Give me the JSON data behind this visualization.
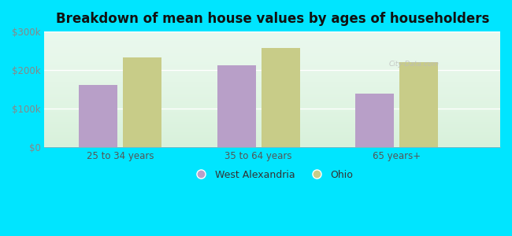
{
  "title": "Breakdown of mean house values by ages of householders",
  "categories": [
    "25 to 34 years",
    "35 to 64 years",
    "65 years+"
  ],
  "west_alexandria": [
    162000,
    213000,
    138000
  ],
  "ohio": [
    232000,
    258000,
    220000
  ],
  "bar_color_wa": "#b89fc8",
  "bar_color_ohio": "#c8cc88",
  "background_outer": "#00e5ff",
  "background_inner": "#e8f8ee",
  "ylim": [
    0,
    300000
  ],
  "yticks": [
    0,
    100000,
    200000,
    300000
  ],
  "ytick_labels": [
    "$0",
    "$100k",
    "$200k",
    "$300k"
  ],
  "legend_labels": [
    "West Alexandria",
    "Ohio"
  ],
  "bar_width": 0.28,
  "title_fontsize": 12,
  "tick_fontsize": 8.5,
  "legend_fontsize": 9
}
